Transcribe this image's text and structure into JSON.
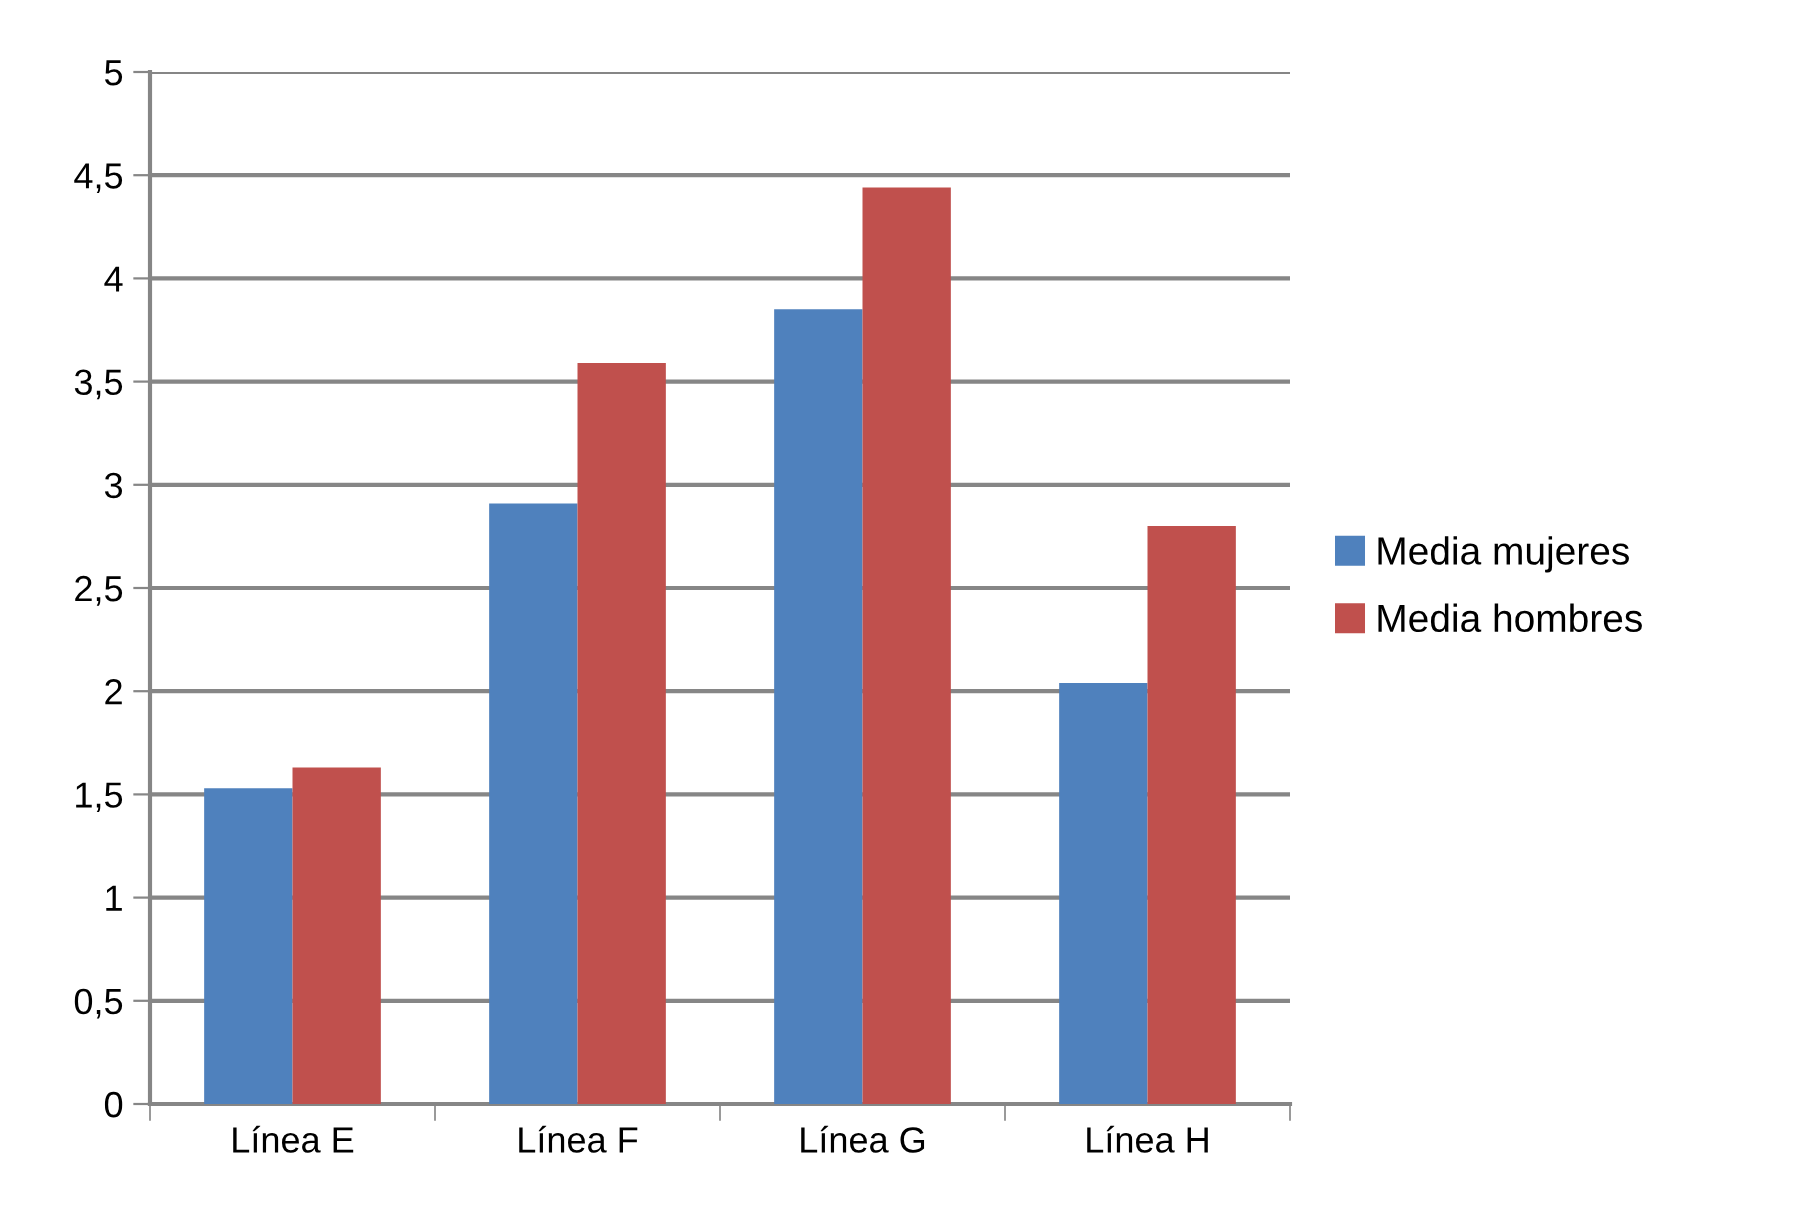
{
  "chart_data": {
    "type": "bar",
    "categories": [
      "Línea E",
      "Línea F",
      "Línea G",
      "Línea H"
    ],
    "series": [
      {
        "name": "Media mujeres",
        "color": "#4f81bd",
        "values": [
          1.53,
          2.91,
          3.85,
          2.04
        ]
      },
      {
        "name": "Media hombres",
        "color": "#c0504d",
        "values": [
          1.63,
          3.59,
          4.44,
          2.8
        ]
      }
    ],
    "ylim": [
      0,
      5
    ],
    "yticks": [
      {
        "value": 0,
        "label": "0"
      },
      {
        "value": 0.5,
        "label": "0,5"
      },
      {
        "value": 1,
        "label": "1"
      },
      {
        "value": 1.5,
        "label": "1,5"
      },
      {
        "value": 2,
        "label": "2"
      },
      {
        "value": 2.5,
        "label": "2,5"
      },
      {
        "value": 3,
        "label": "3"
      },
      {
        "value": 3.5,
        "label": "3,5"
      },
      {
        "value": 4,
        "label": "4"
      },
      {
        "value": 4.5,
        "label": "4,5"
      },
      {
        "value": 5,
        "label": "5"
      }
    ],
    "grid": "y",
    "legend": "right"
  }
}
